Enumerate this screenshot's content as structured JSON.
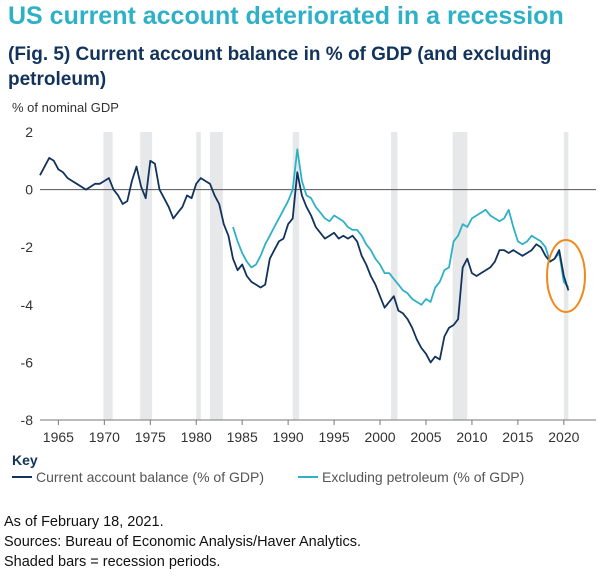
{
  "header": {
    "title": "US current account deteriorated in a recession",
    "subtitle": "(Fig. 5) Current account balance in % of GDP (and excluding petroleum)"
  },
  "key_label": "Key",
  "notes": [
    "As of February 18, 2021.",
    "Sources: Bureau of Economic Analysis/Haver Analytics.",
    "Shaded bars = recession periods."
  ],
  "chart_data": {
    "type": "line",
    "ylabel": "% of nominal GDP",
    "xlim": [
      1963,
      2023.5
    ],
    "ylim": [
      -8,
      2
    ],
    "yticks": [
      2,
      0,
      -2,
      -4,
      -6,
      -8
    ],
    "xticks": [
      1965,
      1970,
      1975,
      1980,
      1985,
      1990,
      1995,
      2000,
      2005,
      2010,
      2015,
      2020
    ],
    "recessions": [
      [
        1969.9,
        1970.9
      ],
      [
        1973.9,
        1975.2
      ],
      [
        1980.0,
        1980.5
      ],
      [
        1981.5,
        1982.9
      ],
      [
        1990.5,
        1991.2
      ],
      [
        2001.2,
        2001.9
      ],
      [
        2007.9,
        2009.5
      ],
      [
        2020.0,
        2020.5
      ]
    ],
    "colors": {
      "current": "#12335b",
      "ex_petroleum": "#2eb1c6",
      "highlight": "#f08a1e",
      "recession": "#e7e8ea"
    },
    "series": [
      {
        "name": "Current account balance (% of GDP)",
        "x": [
          1963.0,
          1963.5,
          1964.0,
          1964.5,
          1965.0,
          1965.5,
          1966.0,
          1966.5,
          1967.0,
          1967.5,
          1968.0,
          1968.5,
          1969.0,
          1969.5,
          1970.0,
          1970.5,
          1971.0,
          1971.5,
          1972.0,
          1972.5,
          1973.0,
          1973.5,
          1974.0,
          1974.5,
          1975.0,
          1975.5,
          1976.0,
          1976.5,
          1977.0,
          1977.5,
          1978.0,
          1978.5,
          1979.0,
          1979.5,
          1980.0,
          1980.5,
          1981.0,
          1981.5,
          1982.0,
          1982.5,
          1983.0,
          1983.5,
          1984.0,
          1984.5,
          1985.0,
          1985.5,
          1986.0,
          1986.5,
          1987.0,
          1987.5,
          1988.0,
          1988.5,
          1989.0,
          1989.5,
          1990.0,
          1990.5,
          1991.0,
          1991.5,
          1992.0,
          1992.5,
          1993.0,
          1993.5,
          1994.0,
          1994.5,
          1995.0,
          1995.5,
          1996.0,
          1996.5,
          1997.0,
          1997.5,
          1998.0,
          1998.5,
          1999.0,
          1999.5,
          2000.0,
          2000.5,
          2001.0,
          2001.5,
          2002.0,
          2002.5,
          2003.0,
          2003.5,
          2004.0,
          2004.5,
          2005.0,
          2005.5,
          2006.0,
          2006.5,
          2007.0,
          2007.5,
          2008.0,
          2008.5,
          2009.0,
          2009.5,
          2010.0,
          2010.5,
          2011.0,
          2011.5,
          2012.0,
          2012.5,
          2013.0,
          2013.5,
          2014.0,
          2014.5,
          2015.0,
          2015.5,
          2016.0,
          2016.5,
          2017.0,
          2017.5,
          2018.0,
          2018.5,
          2019.0,
          2019.5,
          2020.0,
          2020.5
        ],
        "values": [
          0.5,
          0.8,
          1.1,
          1.0,
          0.7,
          0.6,
          0.4,
          0.3,
          0.2,
          0.1,
          0.0,
          0.1,
          0.2,
          0.2,
          0.3,
          0.4,
          0.0,
          -0.2,
          -0.5,
          -0.4,
          0.3,
          0.8,
          0.1,
          -0.3,
          1.0,
          0.9,
          0.0,
          -0.3,
          -0.6,
          -1.0,
          -0.8,
          -0.6,
          -0.2,
          -0.3,
          0.2,
          0.4,
          0.3,
          0.2,
          -0.2,
          -0.5,
          -1.2,
          -1.6,
          -2.4,
          -2.8,
          -2.6,
          -3.0,
          -3.2,
          -3.3,
          -3.4,
          -3.3,
          -2.4,
          -2.1,
          -1.8,
          -1.7,
          -1.2,
          -1.0,
          0.6,
          -0.2,
          -0.6,
          -0.9,
          -1.3,
          -1.5,
          -1.7,
          -1.6,
          -1.5,
          -1.7,
          -1.6,
          -1.7,
          -1.6,
          -1.8,
          -2.3,
          -2.6,
          -3.0,
          -3.3,
          -3.7,
          -4.1,
          -3.9,
          -3.7,
          -4.2,
          -4.3,
          -4.5,
          -4.8,
          -5.2,
          -5.5,
          -5.7,
          -6.0,
          -5.8,
          -5.9,
          -5.1,
          -4.8,
          -4.7,
          -4.5,
          -2.7,
          -2.4,
          -2.9,
          -3.0,
          -2.9,
          -2.8,
          -2.7,
          -2.5,
          -2.1,
          -2.1,
          -2.2,
          -2.1,
          -2.2,
          -2.3,
          -2.2,
          -2.1,
          -1.9,
          -2.0,
          -2.3,
          -2.5,
          -2.4,
          -2.1,
          -3.0,
          -3.5
        ]
      },
      {
        "name": "Excluding petroleum (% of GDP)",
        "x": [
          1984.0,
          1984.5,
          1985.0,
          1985.5,
          1986.0,
          1986.5,
          1987.0,
          1987.5,
          1988.0,
          1988.5,
          1989.0,
          1989.5,
          1990.0,
          1990.5,
          1991.0,
          1991.5,
          1992.0,
          1992.5,
          1993.0,
          1993.5,
          1994.0,
          1994.5,
          1995.0,
          1995.5,
          1996.0,
          1996.5,
          1997.0,
          1997.5,
          1998.0,
          1998.5,
          1999.0,
          1999.5,
          2000.0,
          2000.5,
          2001.0,
          2001.5,
          2002.0,
          2002.5,
          2003.0,
          2003.5,
          2004.0,
          2004.5,
          2005.0,
          2005.5,
          2006.0,
          2006.5,
          2007.0,
          2007.5,
          2008.0,
          2008.5,
          2009.0,
          2009.5,
          2010.0,
          2010.5,
          2011.0,
          2011.5,
          2012.0,
          2012.5,
          2013.0,
          2013.5,
          2014.0,
          2014.5,
          2015.0,
          2015.5,
          2016.0,
          2016.5,
          2017.0,
          2017.5,
          2018.0,
          2018.5,
          2019.0,
          2019.5,
          2020.0,
          2020.5
        ],
        "values": [
          -1.3,
          -1.8,
          -2.2,
          -2.5,
          -2.7,
          -2.6,
          -2.3,
          -1.9,
          -1.6,
          -1.3,
          -1.0,
          -0.7,
          -0.4,
          0.0,
          1.4,
          0.3,
          -0.2,
          -0.3,
          -0.6,
          -0.8,
          -1.0,
          -1.1,
          -0.9,
          -1.0,
          -1.1,
          -1.3,
          -1.4,
          -1.4,
          -1.6,
          -1.9,
          -2.1,
          -2.4,
          -2.6,
          -2.9,
          -2.9,
          -3.1,
          -3.3,
          -3.5,
          -3.6,
          -3.8,
          -3.9,
          -4.0,
          -3.8,
          -3.9,
          -3.4,
          -3.2,
          -2.8,
          -2.7,
          -1.8,
          -1.6,
          -1.2,
          -1.3,
          -1.0,
          -0.9,
          -0.8,
          -0.7,
          -0.9,
          -1.0,
          -1.1,
          -1.0,
          -0.7,
          -1.3,
          -1.8,
          -1.9,
          -1.8,
          -1.6,
          -1.7,
          -1.8,
          -2.0,
          -2.5,
          -2.4,
          -2.2,
          -3.2,
          -3.4
        ]
      }
    ]
  }
}
